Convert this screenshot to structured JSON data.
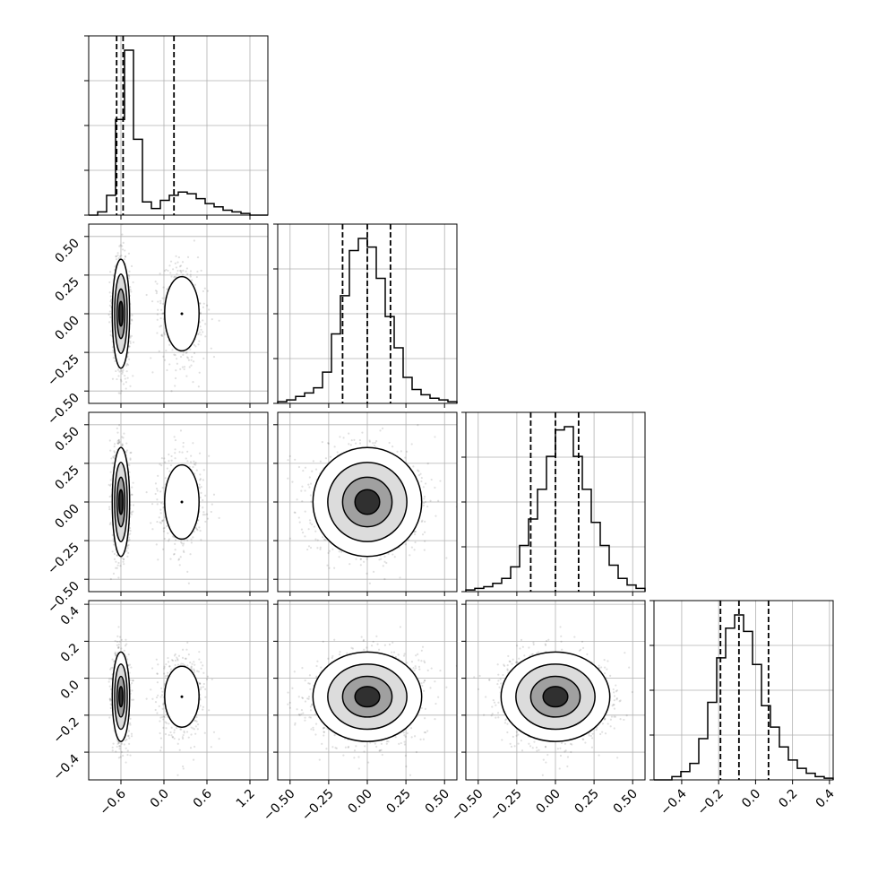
{
  "chart_data": {
    "type": "corner",
    "n_params": 4,
    "grid": true,
    "colors": {
      "hist": "#000000",
      "grid": "#b0b0b0",
      "points": "#000000"
    },
    "quantile_style": "dashed",
    "params": [
      {
        "range": [
          -1.05,
          1.45
        ],
        "ticks": [
          -0.6,
          0.0,
          0.6,
          1.2
        ],
        "tick_labels": [
          "−0.6",
          "0.0",
          "0.6",
          "1.2"
        ],
        "quantiles": [
          -0.66,
          -0.57,
          0.14
        ],
        "hist": [
          0,
          2,
          12,
          58,
          100,
          46,
          8,
          4,
          9,
          12,
          14,
          13,
          10,
          7,
          5,
          3,
          2,
          1,
          0,
          0
        ],
        "blobs": [
          {
            "mean": -0.6,
            "sd": 0.055,
            "weight": 0.72
          },
          {
            "mean": 0.25,
            "sd": 0.16,
            "weight": 0.28
          }
        ]
      },
      {
        "range": [
          -0.58,
          0.58
        ],
        "ticks": [
          -0.5,
          -0.25,
          0.0,
          0.25,
          0.5
        ],
        "tick_labels": [
          "−0.50",
          "−0.25",
          "0.00",
          "0.25",
          "0.50"
        ],
        "quantiles": [
          -0.16,
          0.0,
          0.15
        ],
        "hist": [
          1,
          2,
          4,
          6,
          9,
          18,
          40,
          62,
          88,
          95,
          90,
          72,
          50,
          32,
          15,
          8,
          5,
          3,
          2,
          1
        ],
        "blobs": [
          {
            "mean": 0.0,
            "sd": 0.16,
            "weight": 1.0
          }
        ]
      },
      {
        "range": [
          -0.58,
          0.58
        ],
        "ticks": [
          -0.5,
          -0.25,
          0.0,
          0.25,
          0.5
        ],
        "tick_labels": [
          "−0.50",
          "−0.25",
          "0.00",
          "0.25",
          "0.50"
        ],
        "quantiles": [
          -0.16,
          0.0,
          0.15
        ],
        "hist": [
          1,
          2,
          3,
          5,
          8,
          15,
          28,
          44,
          62,
          82,
          98,
          100,
          82,
          62,
          42,
          28,
          16,
          8,
          4,
          2
        ],
        "blobs": [
          {
            "mean": 0.0,
            "sd": 0.16,
            "weight": 1.0
          }
        ]
      },
      {
        "range": [
          -0.55,
          0.42
        ],
        "ticks": [
          -0.4,
          -0.2,
          0.0,
          0.2,
          0.4
        ],
        "tick_labels": [
          "−0.4",
          "−0.2",
          "0.0",
          "0.2",
          "0.4"
        ],
        "quantiles": [
          -0.19,
          -0.09,
          0.07
        ],
        "hist": [
          0,
          0,
          2,
          5,
          10,
          25,
          47,
          74,
          92,
          100,
          90,
          70,
          45,
          32,
          20,
          12,
          7,
          4,
          2,
          1
        ],
        "blobs": [
          {
            "mean": -0.1,
            "sd": 0.11,
            "weight": 1.0
          }
        ]
      }
    ],
    "y_axis_labels": [
      {
        "row": 1,
        "ticks": [
          -0.5,
          -0.25,
          0.0,
          0.25,
          0.5
        ],
        "tick_labels": [
          "−0.50",
          "−0.25",
          "0.00",
          "0.25",
          "0.50"
        ]
      },
      {
        "row": 2,
        "ticks": [
          -0.5,
          -0.25,
          0.0,
          0.25,
          0.5
        ],
        "tick_labels": [
          "−0.50",
          "−0.25",
          "0.00",
          "0.25",
          "0.50"
        ]
      },
      {
        "row": 3,
        "ticks": [
          -0.4,
          -0.2,
          0.0,
          0.2,
          0.4
        ],
        "tick_labels": [
          "−0.4",
          "−0.2",
          "0.0",
          "0.2",
          "0.4"
        ]
      }
    ]
  }
}
